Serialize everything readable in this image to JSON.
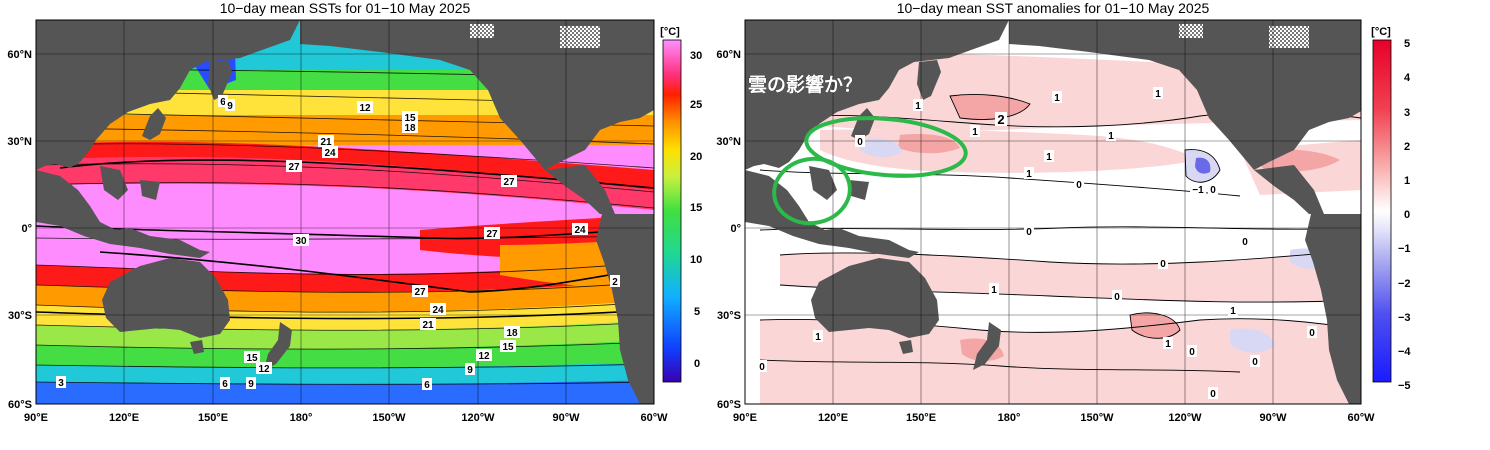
{
  "left_map": {
    "title": "10−day mean SSTs for 01−10 May 2025",
    "colorbar": {
      "unit": "[°C]",
      "ticks": [
        "30",
        "25",
        "20",
        "15",
        "10",
        "5",
        "0"
      ]
    },
    "contour_labels": [
      "6",
      "9",
      "12",
      "15",
      "18",
      "21",
      "24",
      "27",
      "30",
      "27",
      "27",
      "24",
      "27",
      "24",
      "21",
      "18",
      "15",
      "12",
      "9",
      "6",
      "15",
      "12",
      "9",
      "6",
      "3",
      "2"
    ],
    "colors": {
      "pink": "#ff8cff",
      "red": "#ff1a1a",
      "orange": "#ff9a00",
      "yellow": "#ffe23a",
      "green": "#44dd44",
      "cyan": "#20c8d8",
      "blue": "#2a4cff"
    }
  },
  "right_map": {
    "title": "10−day mean SST anomalies for 01−10 May 2025",
    "colorbar": {
      "unit": "[°C]",
      "ticks": [
        "5",
        "4",
        "3",
        "2",
        "1",
        "0",
        "−1",
        "−2",
        "−3",
        "−4",
        "−5"
      ]
    },
    "contour_labels": [
      "1",
      "1",
      "2",
      "1",
      "1",
      "0",
      "1",
      "1",
      "1",
      "0",
      "−1",
      "0",
      "0",
      "0",
      "0",
      "0",
      "1",
      "0",
      "1",
      "0",
      "1",
      "0",
      "1",
      "0",
      "0",
      "0"
    ],
    "annotation": "雲の影響か？",
    "highlight_color": "#2db84a"
  },
  "axes": {
    "lat_labels": [
      "60°N",
      "30°N",
      "0°",
      "30°S",
      "60°S"
    ],
    "lon_labels": [
      "90°E",
      "120°E",
      "150°E",
      "180°",
      "150°W",
      "120°W",
      "90°W",
      "60°W"
    ]
  },
  "land_color": "#555555"
}
